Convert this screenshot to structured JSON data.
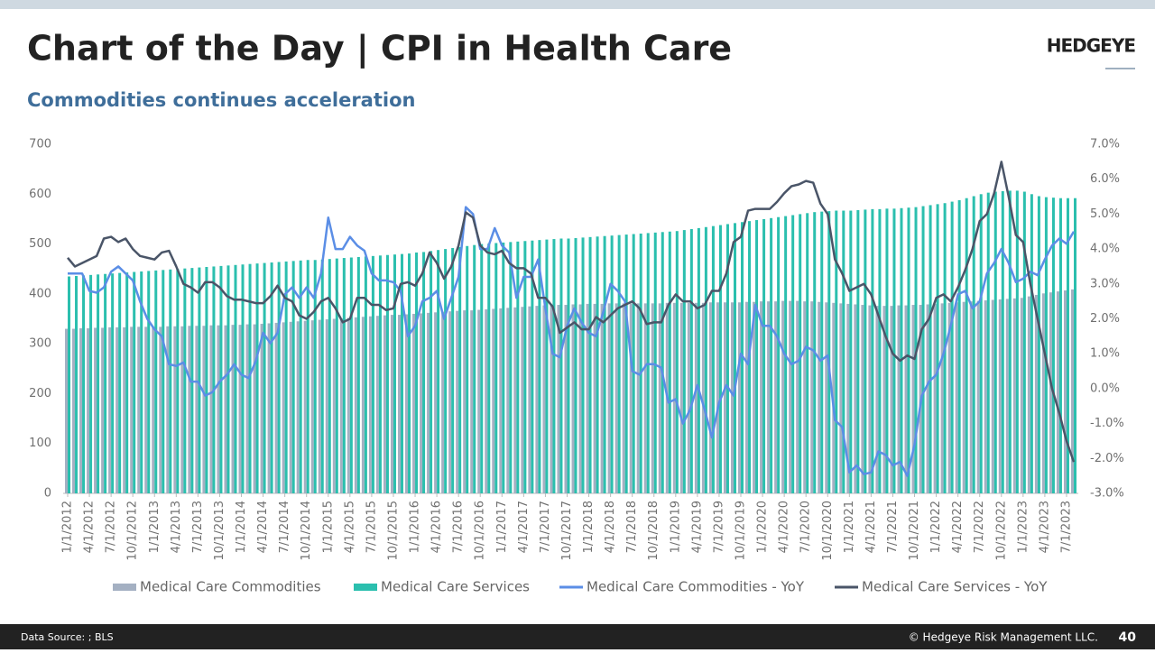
{
  "header": {
    "logo": "HEDGEYE"
  },
  "footer": {
    "source": "Data Source: ; BLS",
    "copyright": "© Hedgeye Risk Management LLC.",
    "page": "40"
  },
  "chart_data": {
    "type": "bar-line",
    "title": "Chart of the Day | CPI in Health Care",
    "subtitle": "Commodities continues acceleration",
    "categories": [
      "1/1/2012",
      null,
      null,
      "4/1/2012",
      null,
      null,
      "7/1/2012",
      null,
      null,
      "10/1/2012",
      null,
      null,
      "1/1/2013",
      null,
      null,
      "4/1/2013",
      null,
      null,
      "7/1/2013",
      null,
      null,
      "10/1/2013",
      null,
      null,
      "1/1/2014",
      null,
      null,
      "4/1/2014",
      null,
      null,
      "7/1/2014",
      null,
      null,
      "10/1/2014",
      null,
      null,
      "1/1/2015",
      null,
      null,
      "4/1/2015",
      null,
      null,
      "7/1/2015",
      null,
      null,
      "10/1/2015",
      null,
      null,
      "1/1/2016",
      null,
      null,
      "4/1/2016",
      null,
      null,
      "7/1/2016",
      null,
      null,
      "10/1/2016",
      null,
      null,
      "1/1/2017",
      null,
      null,
      "4/1/2017",
      null,
      null,
      "7/1/2017",
      null,
      null,
      "10/1/2017",
      null,
      null,
      "1/1/2018",
      null,
      null,
      "4/1/2018",
      null,
      null,
      "7/1/2018",
      null,
      null,
      "10/1/2018",
      null,
      null,
      "1/1/2019",
      null,
      null,
      "4/1/2019",
      null,
      null,
      "7/1/2019",
      null,
      null,
      "10/1/2019",
      null,
      null,
      "1/1/2020",
      null,
      null,
      "4/1/2020",
      null,
      null,
      "7/1/2020",
      null,
      null,
      "10/1/2020",
      null,
      null,
      "1/1/2021",
      null,
      null,
      "4/1/2021",
      null,
      null,
      "7/1/2021",
      null,
      null,
      "10/1/2021",
      null,
      null,
      "1/1/2022",
      null,
      null,
      "4/1/2022",
      null,
      null,
      "7/1/2022",
      null,
      null,
      "10/1/2022",
      null,
      null,
      "1/1/2023",
      null,
      null,
      "4/1/2023",
      null,
      null,
      "7/1/2023",
      null
    ],
    "series": [
      {
        "name": "Medical Care Commodities",
        "kind": "bar",
        "color": "#a4b0c2",
        "values": [
          330,
          330,
          331,
          331,
          332,
          332,
          333,
          333,
          333,
          334,
          334,
          334,
          334,
          334,
          335,
          335,
          335,
          336,
          336,
          336,
          337,
          337,
          337,
          338,
          338,
          339,
          339,
          340,
          341,
          342,
          343,
          344,
          345,
          346,
          347,
          348,
          349,
          350,
          351,
          352,
          353,
          354,
          355,
          356,
          357,
          358,
          358,
          359,
          360,
          361,
          362,
          363,
          364,
          365,
          366,
          367,
          367,
          368,
          369,
          370,
          371,
          372,
          373,
          374,
          375,
          376,
          377,
          377,
          378,
          378,
          379,
          379,
          380,
          380,
          380,
          381,
          381,
          381,
          381,
          381,
          381,
          381,
          381,
          382,
          382,
          382,
          382,
          382,
          382,
          383,
          383,
          383,
          383,
          383,
          384,
          384,
          385,
          385,
          385,
          386,
          386,
          386,
          385,
          385,
          384,
          383,
          382,
          381,
          380,
          379,
          378,
          377,
          376,
          376,
          376,
          377,
          377,
          378,
          378,
          379,
          380,
          381,
          382,
          383,
          384,
          385,
          386,
          387,
          388,
          389,
          390,
          391,
          392,
          395,
          398,
          401,
          403,
          405,
          407,
          409
        ]
      },
      {
        "name": "Medical Care Services",
        "kind": "bar",
        "color": "#2bbfae",
        "values": [
          435,
          436,
          437,
          438,
          439,
          440,
          441,
          442,
          443,
          444,
          445,
          446,
          447,
          448,
          449,
          450,
          451,
          452,
          453,
          454,
          455,
          456,
          457,
          458,
          459,
          460,
          461,
          462,
          463,
          464,
          465,
          466,
          467,
          468,
          468,
          469,
          470,
          471,
          472,
          473,
          474,
          475,
          476,
          477,
          478,
          479,
          480,
          481,
          483,
          484,
          486,
          488,
          490,
          492,
          494,
          496,
          498,
          500,
          501,
          502,
          503,
          504,
          505,
          506,
          507,
          508,
          509,
          510,
          511,
          511,
          512,
          513,
          514,
          515,
          516,
          517,
          518,
          519,
          520,
          521,
          522,
          523,
          524,
          525,
          526,
          528,
          530,
          532,
          534,
          536,
          538,
          540,
          542,
          544,
          546,
          548,
          550,
          552,
          554,
          556,
          558,
          560,
          562,
          564,
          565,
          566,
          567,
          567,
          567,
          568,
          569,
          570,
          570,
          571,
          571,
          572,
          573,
          574,
          576,
          578,
          580,
          582,
          585,
          588,
          592,
          596,
          600,
          603,
          605,
          606,
          607,
          607,
          605,
          600,
          596,
          594,
          593,
          592,
          592,
          592
        ]
      },
      {
        "name": "Medical Care Commodities - YoY",
        "kind": "line",
        "axis": "y2",
        "color": "#5b8ee6",
        "values": [
          3.3,
          3.3,
          3.3,
          2.8,
          2.75,
          2.9,
          3.35,
          3.5,
          3.3,
          3.1,
          2.5,
          2.0,
          1.7,
          1.5,
          0.7,
          0.65,
          0.75,
          0.2,
          0.2,
          -0.2,
          -0.1,
          0.2,
          0.4,
          0.7,
          0.4,
          0.3,
          0.8,
          1.6,
          1.3,
          1.6,
          2.7,
          2.9,
          2.6,
          2.9,
          2.6,
          3.3,
          4.9,
          4.0,
          4.0,
          4.35,
          4.1,
          3.95,
          3.3,
          3.1,
          3.1,
          3.05,
          2.8,
          1.5,
          1.8,
          2.5,
          2.6,
          2.8,
          2.0,
          2.6,
          3.2,
          5.2,
          5.0,
          4.0,
          4.0,
          4.6,
          4.1,
          3.9,
          2.6,
          3.2,
          3.2,
          3.7,
          2.3,
          1.0,
          0.9,
          1.8,
          2.3,
          1.9,
          1.6,
          1.5,
          2.2,
          3.0,
          2.8,
          2.5,
          0.5,
          0.4,
          0.7,
          0.7,
          0.6,
          -0.4,
          -0.3,
          -1.0,
          -0.6,
          0.1,
          -0.6,
          -1.4,
          -0.4,
          0.1,
          -0.2,
          1.0,
          0.7,
          2.4,
          1.8,
          1.8,
          1.5,
          1.0,
          0.7,
          0.8,
          1.2,
          1.1,
          0.8,
          0.95,
          -0.9,
          -1.1,
          -2.4,
          -2.2,
          -2.45,
          -2.4,
          -1.8,
          -1.9,
          -2.2,
          -2.1,
          -2.5,
          -1.6,
          -0.2,
          0.2,
          0.4,
          1.0,
          1.8,
          2.7,
          2.8,
          2.3,
          2.5,
          3.3,
          3.6,
          4.0,
          3.6,
          3.05,
          3.15,
          3.35,
          3.25,
          3.7,
          4.1,
          4.3,
          4.15,
          4.5
        ]
      },
      {
        "name": "Medical Care Services - YoY",
        "kind": "line",
        "axis": "y2",
        "color": "#4a5568",
        "values": [
          3.75,
          3.5,
          3.6,
          3.7,
          3.8,
          4.3,
          4.35,
          4.2,
          4.3,
          4.0,
          3.8,
          3.75,
          3.7,
          3.9,
          3.95,
          3.5,
          3.0,
          2.9,
          2.75,
          3.05,
          3.05,
          2.9,
          2.65,
          2.55,
          2.55,
          2.5,
          2.45,
          2.45,
          2.65,
          2.95,
          2.6,
          2.5,
          2.1,
          2.0,
          2.2,
          2.5,
          2.6,
          2.3,
          1.9,
          2.0,
          2.6,
          2.6,
          2.4,
          2.4,
          2.25,
          2.3,
          3.0,
          3.05,
          2.95,
          3.3,
          3.9,
          3.6,
          3.15,
          3.5,
          4.1,
          5.05,
          4.9,
          4.1,
          3.9,
          3.85,
          3.95,
          3.6,
          3.45,
          3.45,
          3.3,
          2.6,
          2.6,
          2.35,
          1.6,
          1.75,
          1.9,
          1.7,
          1.7,
          2.05,
          1.9,
          2.1,
          2.3,
          2.4,
          2.5,
          2.3,
          1.85,
          1.9,
          1.9,
          2.4,
          2.7,
          2.5,
          2.5,
          2.3,
          2.4,
          2.8,
          2.8,
          3.3,
          4.2,
          4.35,
          5.1,
          5.15,
          5.15,
          5.15,
          5.35,
          5.6,
          5.8,
          5.85,
          5.95,
          5.9,
          5.3,
          5.0,
          3.7,
          3.3,
          2.8,
          2.9,
          3.0,
          2.7,
          2.1,
          1.5,
          1.0,
          0.8,
          0.95,
          0.85,
          1.7,
          2.0,
          2.6,
          2.7,
          2.5,
          2.9,
          3.4,
          4.0,
          4.8,
          5.0,
          5.6,
          6.5,
          5.5,
          4.4,
          4.2,
          3.0,
          2.0,
          1.0,
          0.0,
          -0.7,
          -1.5,
          -2.1
        ]
      }
    ],
    "ylim": [
      0,
      700
    ],
    "yticks": [
      0,
      100,
      200,
      300,
      400,
      500,
      600,
      700
    ],
    "y2lim": [
      -3,
      7
    ],
    "y2ticks": [
      {
        "value": -3,
        "label": "-3.0%"
      },
      {
        "value": -2,
        "label": "-2.0%"
      },
      {
        "value": -1,
        "label": "-1.0%"
      },
      {
        "value": 0,
        "label": "0.0%"
      },
      {
        "value": 1,
        "label": "1.0%"
      },
      {
        "value": 2,
        "label": "2.0%"
      },
      {
        "value": 3,
        "label": "3.0%"
      },
      {
        "value": 4,
        "label": "4.0%"
      },
      {
        "value": 5,
        "label": "5.0%"
      },
      {
        "value": 6,
        "label": "6.0%"
      },
      {
        "value": 7,
        "label": "7.0%"
      }
    ],
    "legend": "bottom"
  }
}
